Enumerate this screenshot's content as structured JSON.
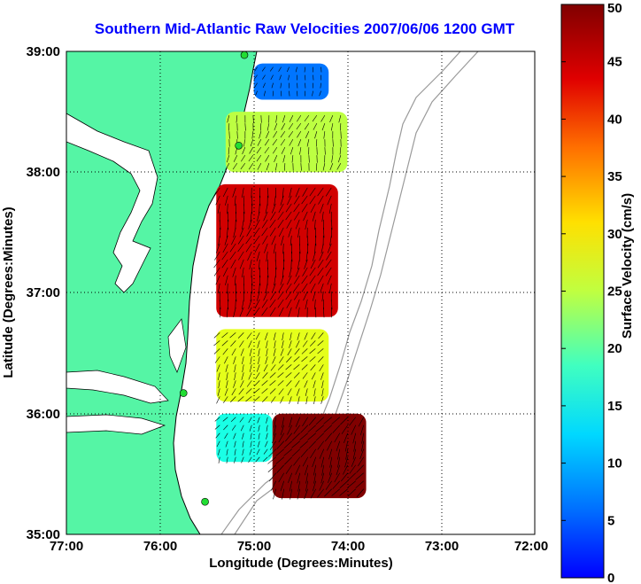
{
  "title": "Southern Mid-Atlantic Raw Velocities 2007/06/06 1200 GMT",
  "xlabel": "Longitude (Degrees:Minutes)",
  "ylabel": "Latitude (Degrees:Minutes)",
  "colorbar_label": "Surface Velocity (cm/s)",
  "x_ticks": [
    "77:00",
    "76:00",
    "75:00",
    "74:00",
    "73:00",
    "72:00"
  ],
  "y_ticks": [
    "39:00",
    "38:00",
    "37:00",
    "36:00",
    "35:00"
  ],
  "colorbar_ticks": [
    "50",
    "45",
    "40",
    "35",
    "30",
    "25",
    "20",
    "15",
    "10",
    "5",
    "0"
  ],
  "colors": {
    "land": "#55f5a5",
    "coast_outline": "#000000",
    "bathymetry": "#9a9a9a",
    "station_marker": "#22dd33",
    "title": "#0000ff"
  },
  "chart_data": {
    "type": "map",
    "x_range_deg_east": [
      -77,
      -72
    ],
    "y_range_deg_north": [
      35,
      39
    ],
    "grid": true,
    "colormap": "jet",
    "clim_cm_s": [
      0,
      50
    ],
    "regions": [
      {
        "name": "",
        "lat": [
          38.6,
          38.9
        ],
        "lon": [
          -75.0,
          -74.2
        ],
        "speed_cm_s": 12
      },
      {
        "name": "",
        "lat": [
          38.0,
          38.5
        ],
        "lon": [
          -75.3,
          -74.0
        ],
        "speed_cm_s": 28
      },
      {
        "name": "",
        "lat": [
          36.8,
          37.9
        ],
        "lon": [
          -75.4,
          -74.1
        ],
        "speed_cm_s": 46
      },
      {
        "name": "",
        "lat": [
          36.1,
          36.7
        ],
        "lon": [
          -75.4,
          -74.2
        ],
        "speed_cm_s": 30
      },
      {
        "name": "",
        "lat": [
          35.6,
          36.0
        ],
        "lon": [
          -75.4,
          -74.8
        ],
        "speed_cm_s": 20
      },
      {
        "name": "",
        "lat": [
          35.3,
          36.0
        ],
        "lon": [
          -74.8,
          -73.8
        ],
        "speed_cm_s": 50
      }
    ],
    "stations": [
      {
        "lat": 38.97,
        "lon": -75.1
      },
      {
        "lat": 38.22,
        "lon": -75.16
      },
      {
        "lat": 36.17,
        "lon": -75.75
      },
      {
        "lat": 35.27,
        "lon": -75.52
      }
    ]
  }
}
